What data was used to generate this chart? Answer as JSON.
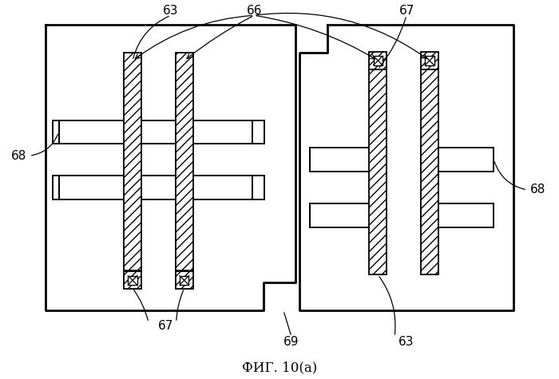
{
  "title": "ФИГ. 10(а)",
  "title_fontsize": 12,
  "bg_color": "#ffffff",
  "fig_width": 7.0,
  "fig_height": 4.75,
  "label_fontsize": 11
}
